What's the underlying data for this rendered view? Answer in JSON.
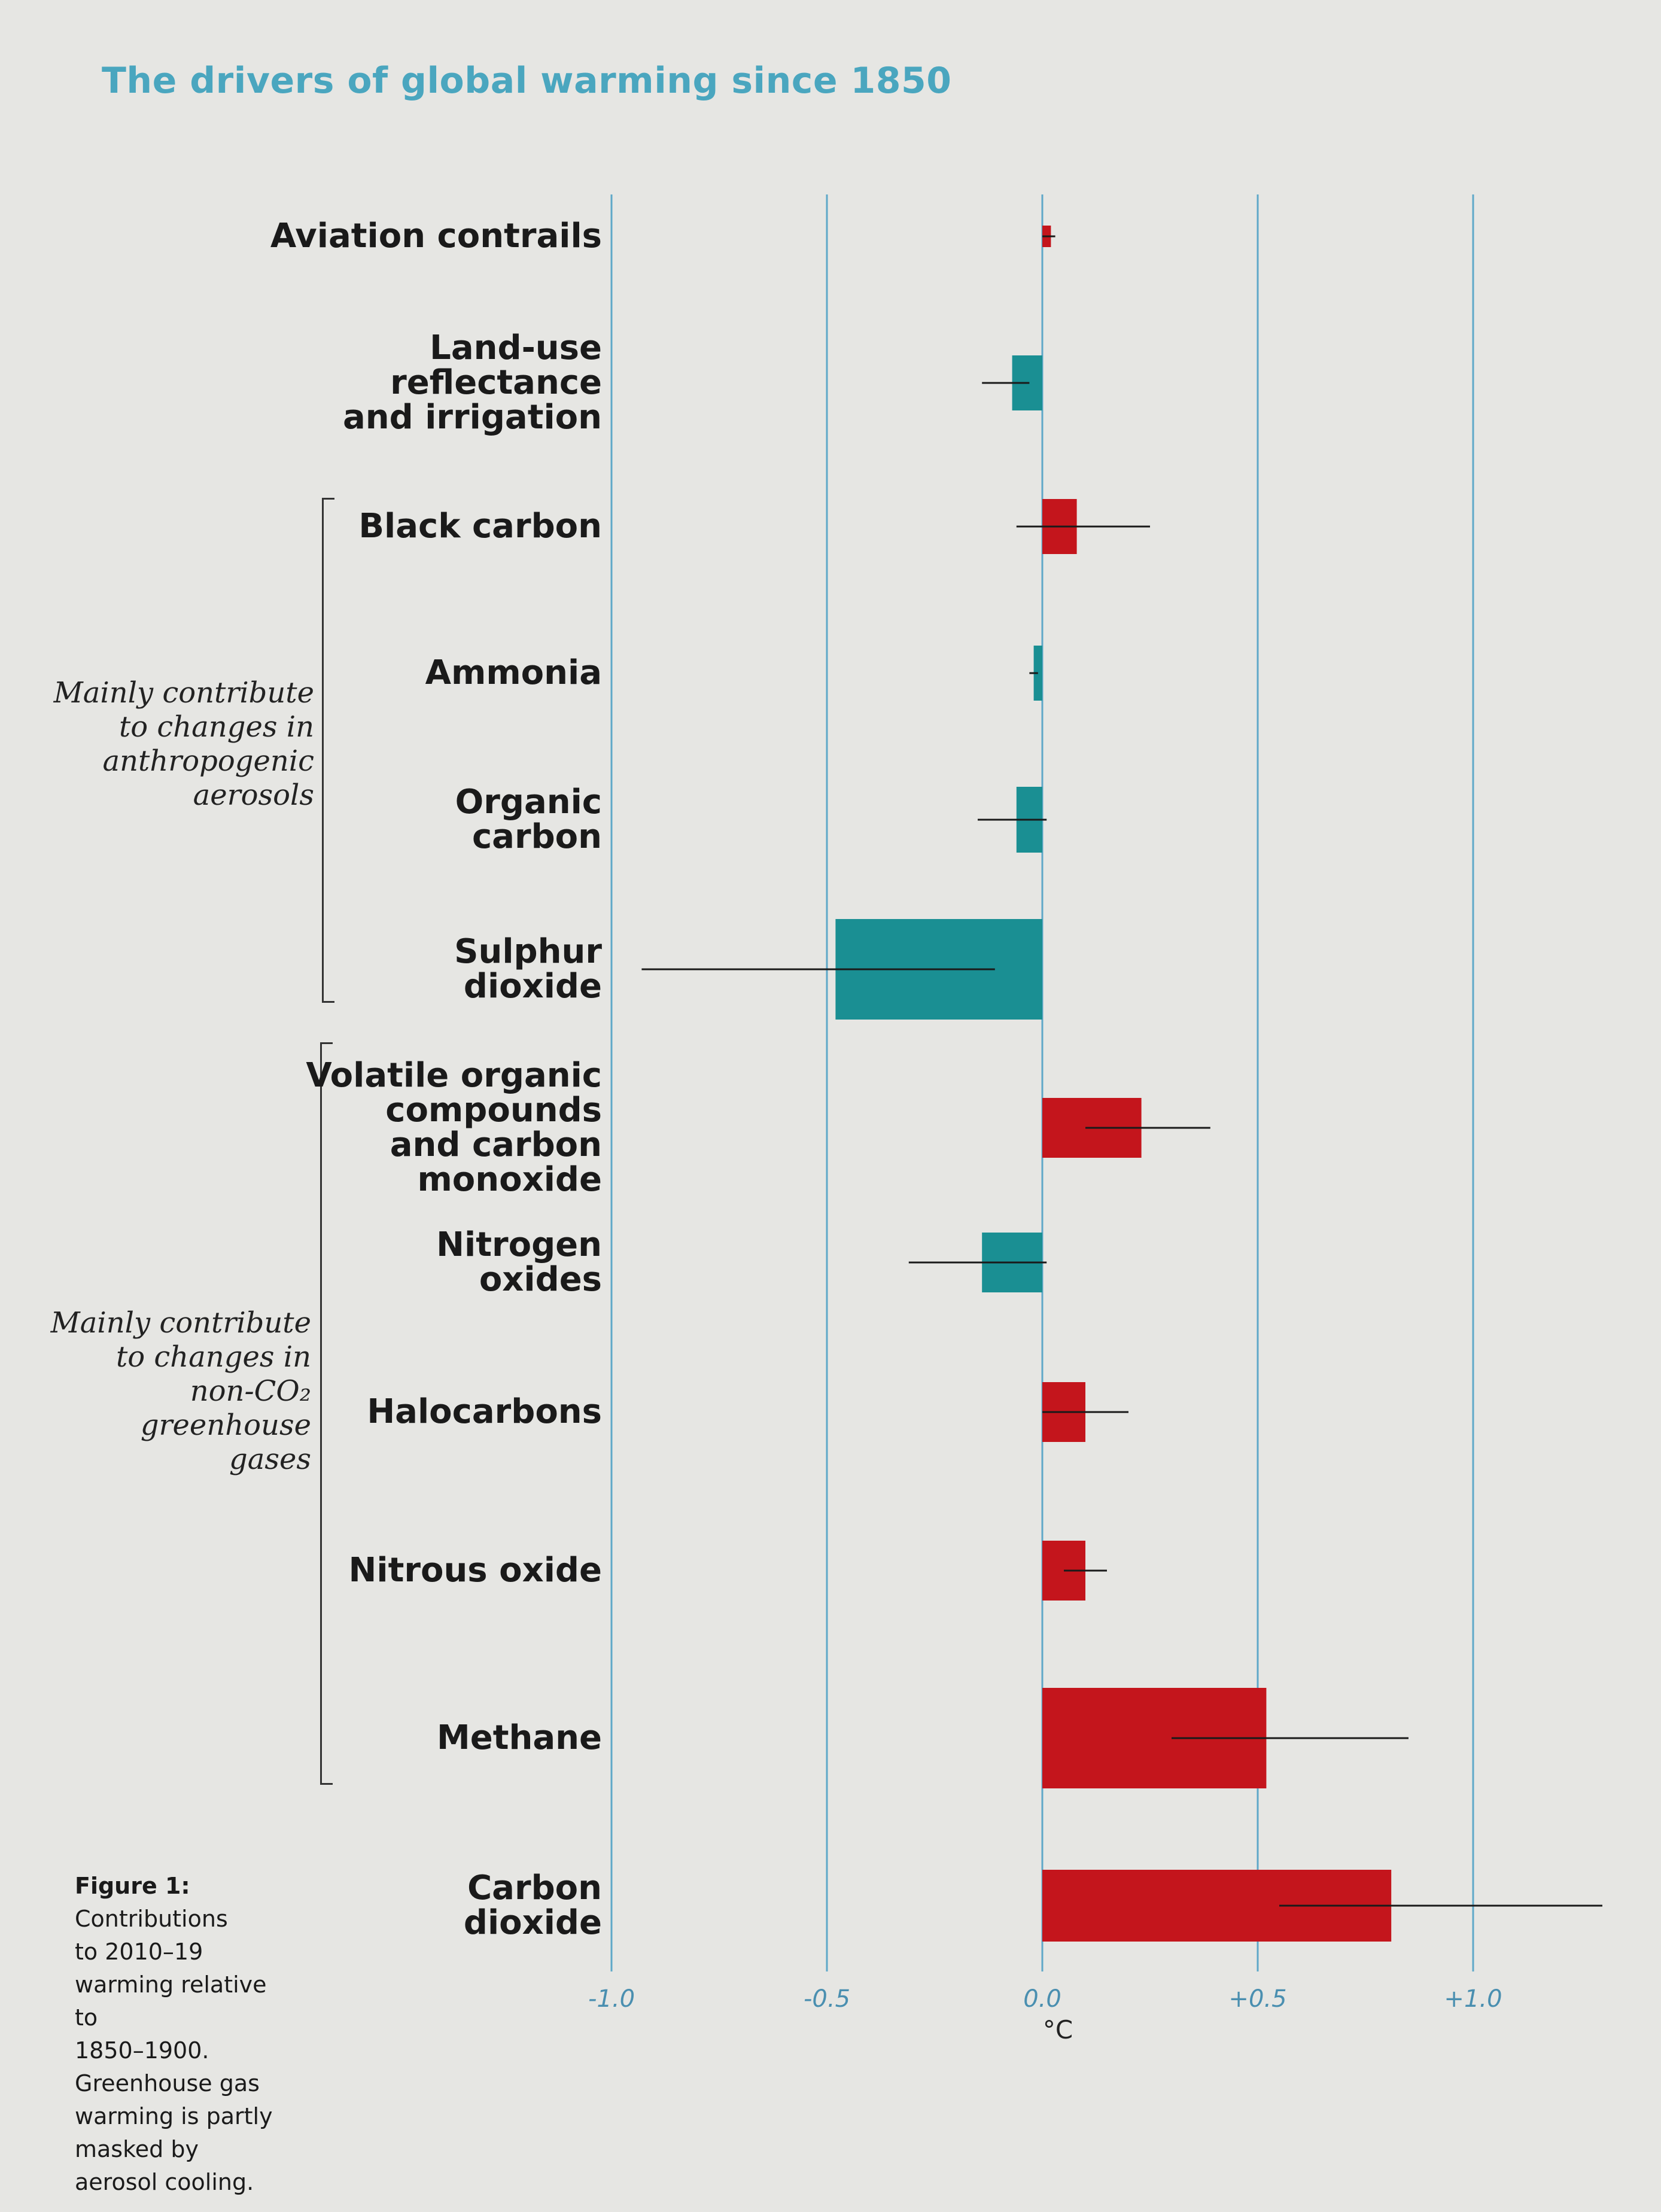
{
  "chart_data": {
    "type": "bar",
    "orientation": "horizontal",
    "title": "The drivers of global warming since 1850",
    "xlabel": "°C",
    "xlim": [
      -1.0,
      1.2
    ],
    "x_ticks": [
      -1.0,
      -0.5,
      0.0,
      0.5,
      1.0
    ],
    "x_tick_labels": [
      "-1.0",
      "-0.5",
      "0.0",
      "+0.5",
      "+1.0"
    ],
    "grid": "vertical",
    "categories": [
      "Aviation contrails",
      "Land-use\nreflectance\nand irrigation",
      "Black carbon",
      "Ammonia",
      "Organic\ncarbon",
      "Sulphur\ndioxide",
      "Volatile organic\ncompounds\nand carbon\nmonoxide",
      "Nitrogen\noxides",
      "Halocarbons",
      "Nitrous oxide",
      "Methane",
      "Carbon\ndioxide"
    ],
    "values": [
      0.02,
      -0.07,
      0.08,
      -0.02,
      -0.06,
      -0.48,
      0.23,
      -0.14,
      0.1,
      0.1,
      0.52,
      0.81
    ],
    "error_low": [
      0.0,
      -0.14,
      -0.06,
      -0.03,
      -0.15,
      -0.93,
      0.1,
      -0.31,
      0.0,
      0.05,
      0.3,
      0.55
    ],
    "error_high": [
      0.03,
      -0.03,
      0.25,
      -0.01,
      0.01,
      -0.11,
      0.39,
      0.01,
      0.2,
      0.15,
      0.85,
      1.3
    ],
    "colors": {
      "positive": "#c4151c",
      "negative": "#1a8f93",
      "gridline": "#5fa8c8",
      "tick_text": "#4a8fb0"
    },
    "groups": [
      {
        "label": "Mainly contribute\nto changes in\nanthropogenic\naerosols",
        "from_category": 2,
        "to_category": 5
      },
      {
        "label": "Mainly contribute\nto changes in\nnon-CO₂\ngreenhouse\ngases",
        "from_category": 6,
        "to_category": 10
      }
    ]
  },
  "caption": {
    "heading": "Figure 1:",
    "body": "Contributions\nto 2010–19\nwarming relative to\n1850–1900.\nGreenhouse gas\nwarming is partly\nmasked by\naerosol cooling."
  }
}
